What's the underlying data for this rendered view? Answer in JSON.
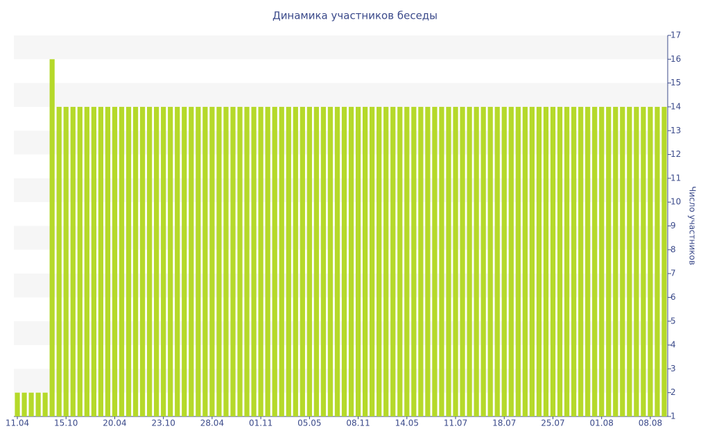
{
  "chart_data": {
    "type": "bar",
    "title": "Динамика участников беседы",
    "y_axis_label": "Число участников",
    "categories": [
      "11.04",
      null,
      null,
      null,
      null,
      null,
      null,
      "15.10",
      null,
      null,
      null,
      null,
      null,
      null,
      "20.04",
      null,
      null,
      null,
      null,
      null,
      null,
      "23.10",
      null,
      null,
      null,
      null,
      null,
      null,
      "28.04",
      null,
      null,
      null,
      null,
      null,
      null,
      "01.11",
      null,
      null,
      null,
      null,
      null,
      null,
      "05.05",
      null,
      null,
      null,
      null,
      null,
      null,
      "08.11",
      null,
      null,
      null,
      null,
      null,
      null,
      "14.05",
      null,
      null,
      null,
      null,
      null,
      null,
      "11.07",
      null,
      null,
      null,
      null,
      null,
      null,
      "18.07",
      null,
      null,
      null,
      null,
      null,
      null,
      "25.07",
      null,
      null,
      null,
      null,
      null,
      null,
      "01.08",
      null,
      null,
      null,
      null,
      null,
      null,
      "08.08",
      null,
      null
    ],
    "values": [
      2,
      2,
      2,
      2,
      2,
      16,
      14,
      14,
      14,
      14,
      14,
      14,
      14,
      14,
      14,
      14,
      14,
      14,
      14,
      14,
      14,
      14,
      14,
      14,
      14,
      14,
      14,
      14,
      14,
      14,
      14,
      14,
      14,
      14,
      14,
      14,
      14,
      14,
      14,
      14,
      14,
      14,
      14,
      14,
      14,
      14,
      14,
      14,
      14,
      14,
      14,
      14,
      14,
      14,
      14,
      14,
      14,
      14,
      14,
      14,
      14,
      14,
      14,
      14,
      14,
      14,
      14,
      14,
      14,
      14,
      14,
      14,
      14,
      14,
      14,
      14,
      14,
      14,
      14,
      14,
      14,
      14,
      14,
      14,
      14,
      14,
      14,
      14,
      14,
      14,
      14,
      14,
      14,
      14
    ],
    "color": "#b5d92a",
    "ylim": [
      1,
      17
    ],
    "yticks": [
      1,
      2,
      3,
      4,
      5,
      6,
      7,
      8,
      9,
      10,
      11,
      12,
      13,
      14,
      15,
      16,
      17
    ],
    "y_axis_side": "right",
    "grid_bands": true
  }
}
